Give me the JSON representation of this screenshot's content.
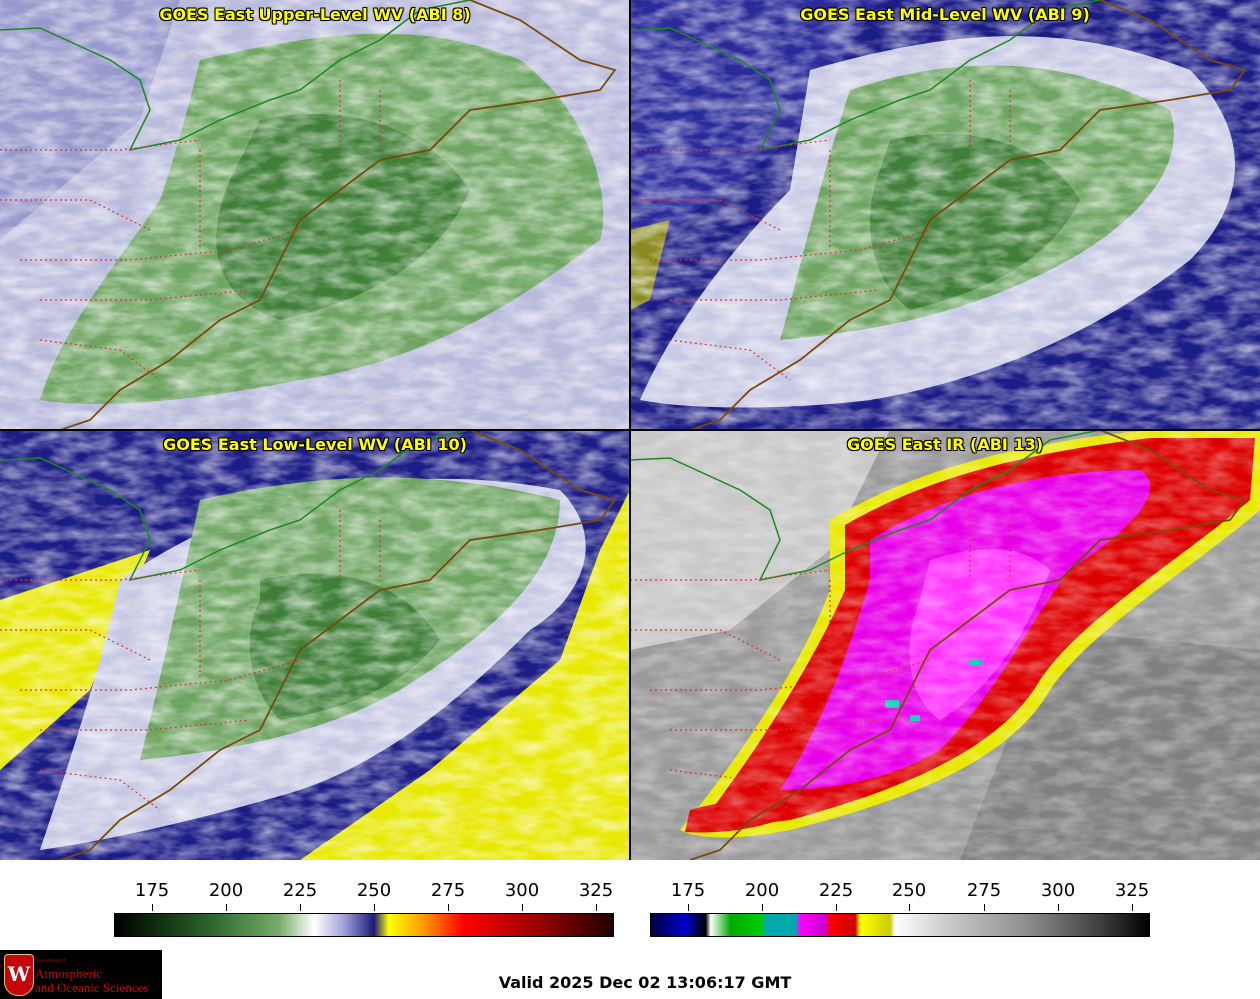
{
  "panels": [
    {
      "title": "GOES East Upper-Level WV (ABI 8)"
    },
    {
      "title": "GOES East Mid-Level WV (ABI 9)"
    },
    {
      "title": "GOES East Low-Level WV (ABI 10)"
    },
    {
      "title": "GOES East IR (ABI 13)"
    }
  ],
  "colorbars": {
    "wv": {
      "ticks": [
        "175",
        "200",
        "225",
        "250",
        "275",
        "300",
        "325"
      ]
    },
    "ir": {
      "ticks": [
        "175",
        "200",
        "225",
        "250",
        "275",
        "300",
        "325"
      ]
    }
  },
  "logo": {
    "shield_letter": "W",
    "dept": "Department of",
    "line1": "Atmospheric",
    "line2": "and Oceanic Sciences"
  },
  "valid_text": "Valid 2025 Dec 02 13:06:17 GMT",
  "colors": {
    "title_text": "#ffff00",
    "state_border": "#e03030",
    "coastline": "#7a4a0a",
    "intl_border": "#1a8a1a"
  }
}
